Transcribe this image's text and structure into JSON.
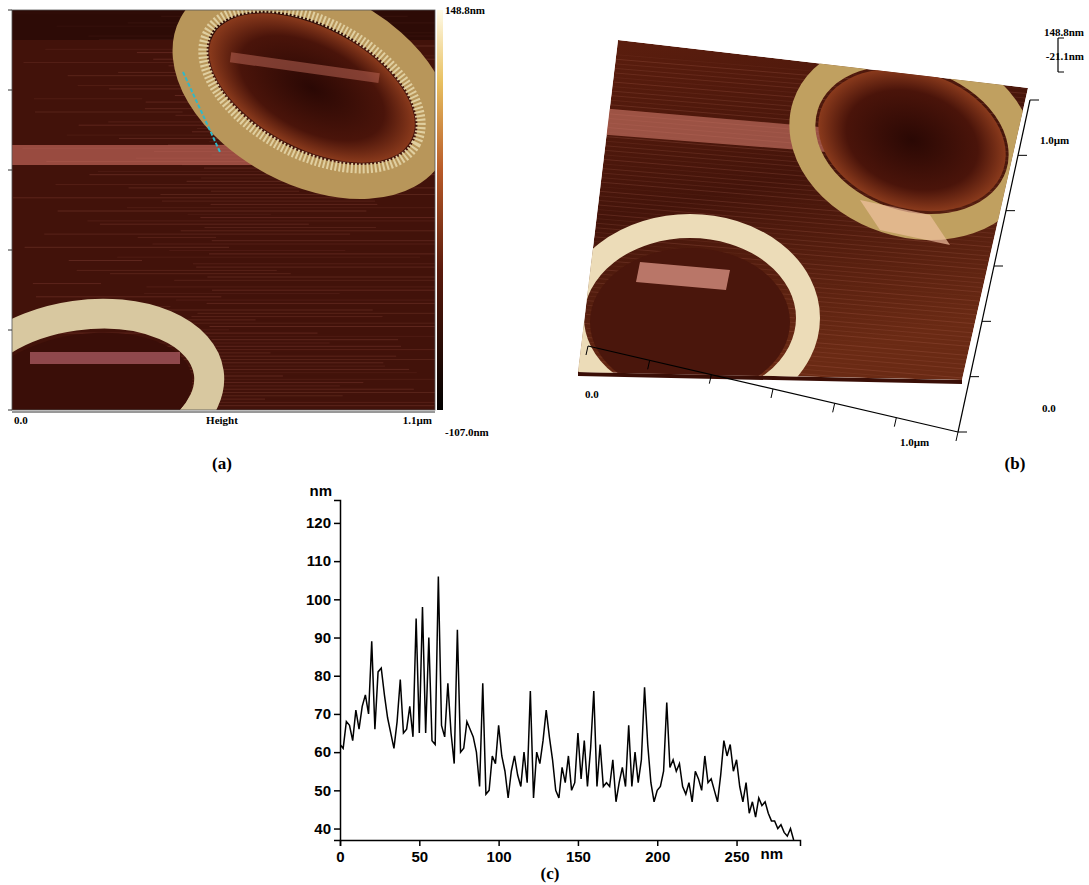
{
  "figure": {
    "panel_a": {
      "label": "(a)",
      "x_start": "0.0",
      "x_axis_title": "Height",
      "x_end": "1.1µm",
      "color_max": "148.8nm",
      "color_min": "-107.0nm"
    },
    "panel_b": {
      "label": "(b)",
      "x_start": "0.0",
      "x_end": "1.0µm",
      "y_start": "0.0",
      "y_end": "1.0µm",
      "z_max": "148.8nm",
      "z_min": "-21.1nm"
    }
  },
  "chart_data": {
    "type": "line",
    "title": "(c)",
    "x_label": "nm",
    "y_label": "nm",
    "color": "#000000",
    "x": [
      0,
      2,
      4,
      6,
      8,
      10,
      12,
      14,
      16,
      18,
      20,
      22,
      24,
      26,
      28,
      30,
      32,
      34,
      36,
      38,
      40,
      42,
      44,
      46,
      48,
      50,
      52,
      54,
      56,
      58,
      60,
      62,
      64,
      66,
      68,
      70,
      72,
      74,
      76,
      78,
      80,
      82,
      84,
      86,
      88,
      90,
      92,
      94,
      96,
      98,
      100,
      102,
      104,
      106,
      108,
      110,
      112,
      114,
      116,
      118,
      120,
      122,
      124,
      126,
      128,
      130,
      132,
      134,
      136,
      138,
      140,
      142,
      144,
      146,
      148,
      150,
      152,
      154,
      156,
      158,
      160,
      162,
      164,
      166,
      168,
      170,
      172,
      174,
      176,
      178,
      180,
      182,
      184,
      186,
      188,
      190,
      192,
      194,
      196,
      198,
      200,
      202,
      204,
      206,
      208,
      210,
      212,
      214,
      216,
      218,
      220,
      222,
      224,
      226,
      228,
      230,
      232,
      234,
      236,
      238,
      240,
      242,
      244,
      246,
      248,
      250,
      252,
      254,
      256,
      258,
      260,
      262,
      264,
      266,
      268,
      270,
      272,
      274,
      276,
      278,
      280,
      282,
      284,
      286
    ],
    "values": [
      62,
      61,
      68,
      67,
      63,
      71,
      66,
      72,
      75,
      70,
      89,
      66,
      81,
      82,
      75,
      69,
      65,
      61,
      68,
      79,
      65,
      66,
      72,
      64,
      95,
      65,
      98,
      65,
      90,
      63,
      62,
      106,
      67,
      64,
      78,
      65,
      57,
      92,
      60,
      61,
      68,
      66,
      64,
      60,
      51,
      78,
      49,
      50,
      59,
      57,
      67,
      59,
      55,
      48,
      55,
      59,
      54,
      51,
      60,
      52,
      76,
      48,
      60,
      57,
      63,
      71,
      64,
      58,
      50,
      48,
      56,
      52,
      59,
      50,
      52,
      65,
      53,
      63,
      51,
      61,
      76,
      51,
      62,
      51,
      52,
      51,
      58,
      47,
      52,
      56,
      51,
      67,
      51,
      60,
      52,
      58,
      77,
      62,
      52,
      47,
      50,
      51,
      55,
      73,
      56,
      58,
      55,
      57,
      51,
      49,
      52,
      47,
      55,
      53,
      50,
      59,
      52,
      53,
      50,
      47,
      54,
      63,
      59,
      62,
      55,
      58,
      51,
      47,
      52,
      44,
      47,
      43,
      48,
      46,
      47,
      44,
      42,
      42,
      40,
      41,
      39,
      38,
      40,
      37
    ],
    "xlim": [
      0,
      290
    ],
    "ylim": [
      37,
      126
    ],
    "xticks": [
      0,
      50,
      100,
      150,
      200,
      250
    ],
    "yticks": [
      40,
      50,
      60,
      70,
      80,
      90,
      100,
      110,
      120
    ]
  }
}
